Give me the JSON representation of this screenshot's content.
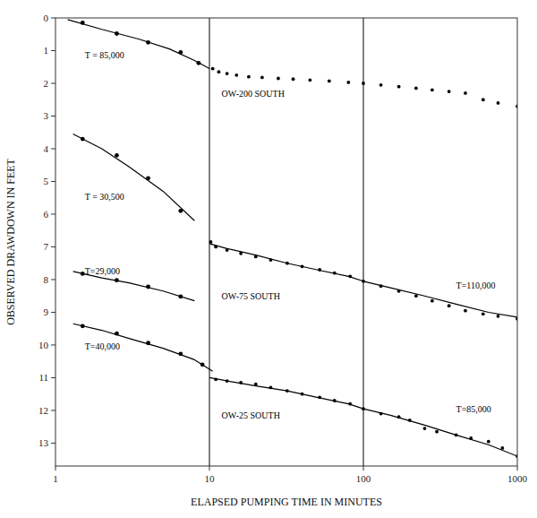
{
  "chart_data": {
    "type": "line",
    "log": "x",
    "xlabel": "ELAPSED  PUMPING  TIME  IN  MINUTES",
    "ylabel": "OBSERVED  DRAWDOWN  IN  FEET",
    "xlim": [
      1,
      1000
    ],
    "ylim": [
      13.7,
      0
    ],
    "xticks": [
      1,
      10,
      100,
      1000
    ],
    "yticks": [
      0,
      1,
      2,
      3,
      4,
      5,
      6,
      7,
      8,
      9,
      10,
      11,
      12,
      13
    ],
    "grid": false,
    "vlines": [
      10,
      100
    ],
    "series": [
      {
        "type": "line",
        "color": "#000000",
        "x": [
          1.2,
          2.0,
          3.5,
          5.5,
          8.0,
          10.0
        ],
        "values": [
          0.05,
          0.35,
          0.65,
          0.95,
          1.3,
          1.55
        ]
      },
      {
        "type": "scatter",
        "marker": "circle",
        "color": "#000000",
        "x": [
          1.5,
          2.5,
          4.0,
          6.5,
          8.5
        ],
        "values": [
          0.15,
          0.48,
          0.75,
          1.05,
          1.38
        ]
      },
      {
        "type": "scatter",
        "marker": "point",
        "color": "#000000",
        "x": [
          10.5,
          11.5,
          13,
          15,
          18,
          22,
          28,
          35,
          45,
          60,
          80,
          100,
          130,
          170,
          220,
          280,
          360,
          460,
          600,
          750,
          1000
        ],
        "values": [
          1.55,
          1.65,
          1.7,
          1.75,
          1.8,
          1.82,
          1.85,
          1.87,
          1.9,
          1.93,
          1.97,
          2.0,
          2.05,
          2.1,
          2.15,
          2.2,
          2.25,
          2.3,
          2.5,
          2.6,
          2.7
        ]
      },
      {
        "type": "line",
        "color": "#000000",
        "x": [
          1.3,
          2.0,
          3.0,
          5.0,
          8.0
        ],
        "values": [
          3.55,
          4.0,
          4.55,
          5.3,
          6.2
        ]
      },
      {
        "type": "scatter",
        "marker": "circle",
        "color": "#000000",
        "x": [
          1.5,
          2.5,
          4.0,
          6.5
        ],
        "values": [
          3.7,
          4.2,
          4.9,
          5.9
        ]
      },
      {
        "type": "line",
        "color": "#000000",
        "x": [
          1.3,
          2.0,
          3.0,
          5.0,
          8.0
        ],
        "values": [
          7.75,
          7.95,
          8.1,
          8.35,
          8.65
        ]
      },
      {
        "type": "scatter",
        "marker": "circle",
        "color": "#000000",
        "x": [
          1.5,
          2.5,
          4.0,
          6.5
        ],
        "values": [
          7.82,
          8.02,
          8.22,
          8.52
        ]
      },
      {
        "type": "line",
        "color": "#000000",
        "x": [
          1.3,
          2.0,
          3.0,
          5.0,
          8.0,
          10.5
        ],
        "values": [
          9.35,
          9.55,
          9.8,
          10.1,
          10.45,
          10.8
        ]
      },
      {
        "type": "scatter",
        "marker": "circle",
        "color": "#000000",
        "x": [
          1.5,
          2.5,
          4.0,
          6.5,
          9.0
        ],
        "values": [
          9.42,
          9.65,
          9.94,
          10.27,
          10.6
        ]
      },
      {
        "type": "scatter",
        "marker": "point",
        "color": "#000000",
        "x": [
          10.2
        ],
        "values": [
          6.85
        ]
      },
      {
        "type": "line",
        "color": "#000000",
        "x": [
          10,
          13,
          20,
          32,
          50,
          80,
          100,
          150,
          250,
          400,
          650,
          1000
        ],
        "values": [
          6.9,
          7.05,
          7.25,
          7.5,
          7.7,
          7.9,
          8.05,
          8.25,
          8.5,
          8.75,
          9.0,
          9.15
        ]
      },
      {
        "type": "scatter",
        "marker": "point",
        "color": "#000000",
        "x": [
          11,
          13,
          16,
          20,
          25,
          32,
          40,
          52,
          65,
          82,
          100,
          130,
          170,
          220,
          280,
          360,
          460,
          600,
          750,
          1000
        ],
        "values": [
          7.0,
          7.1,
          7.2,
          7.3,
          7.4,
          7.5,
          7.6,
          7.7,
          7.8,
          7.9,
          8.05,
          8.2,
          8.35,
          8.5,
          8.65,
          8.8,
          8.95,
          9.05,
          9.12,
          9.2
        ]
      },
      {
        "type": "line",
        "color": "#000000",
        "x": [
          10,
          15,
          20,
          32,
          50,
          80,
          100,
          150,
          250,
          400,
          650,
          1000
        ],
        "values": [
          11.0,
          11.15,
          11.25,
          11.4,
          11.6,
          11.8,
          11.95,
          12.15,
          12.45,
          12.75,
          13.05,
          13.4
        ]
      },
      {
        "type": "scatter",
        "marker": "point",
        "color": "#000000",
        "x": [
          11,
          13,
          16,
          20,
          25,
          32,
          40,
          52,
          65,
          82,
          100,
          130,
          170,
          200,
          250,
          300,
          400,
          500,
          650,
          800,
          1000
        ],
        "values": [
          11.05,
          11.1,
          11.15,
          11.2,
          11.3,
          11.4,
          11.5,
          11.6,
          11.7,
          11.8,
          11.95,
          12.1,
          12.2,
          12.3,
          12.55,
          12.65,
          12.75,
          12.85,
          12.95,
          13.15,
          13.4
        ]
      }
    ],
    "annotations": [
      {
        "text": "OW-200  SOUTH",
        "x": 12,
        "y": 2.42
      },
      {
        "text": "T = 85,000",
        "x": 1.55,
        "y": 1.22
      },
      {
        "text": "OW-75  SOUTH",
        "x": 12,
        "y": 8.6
      },
      {
        "text": "T = 30,500",
        "x": 1.55,
        "y": 5.55
      },
      {
        "text": "T=29,000",
        "x": 1.55,
        "y": 7.85
      },
      {
        "text": "T=40,000",
        "x": 1.55,
        "y": 10.15
      },
      {
        "text": "T=110,000",
        "x": 400,
        "y": 8.28
      },
      {
        "text": "OW-25  SOUTH",
        "x": 12,
        "y": 12.25
      },
      {
        "text": "T=85,000",
        "x": 400,
        "y": 12.05
      }
    ]
  }
}
